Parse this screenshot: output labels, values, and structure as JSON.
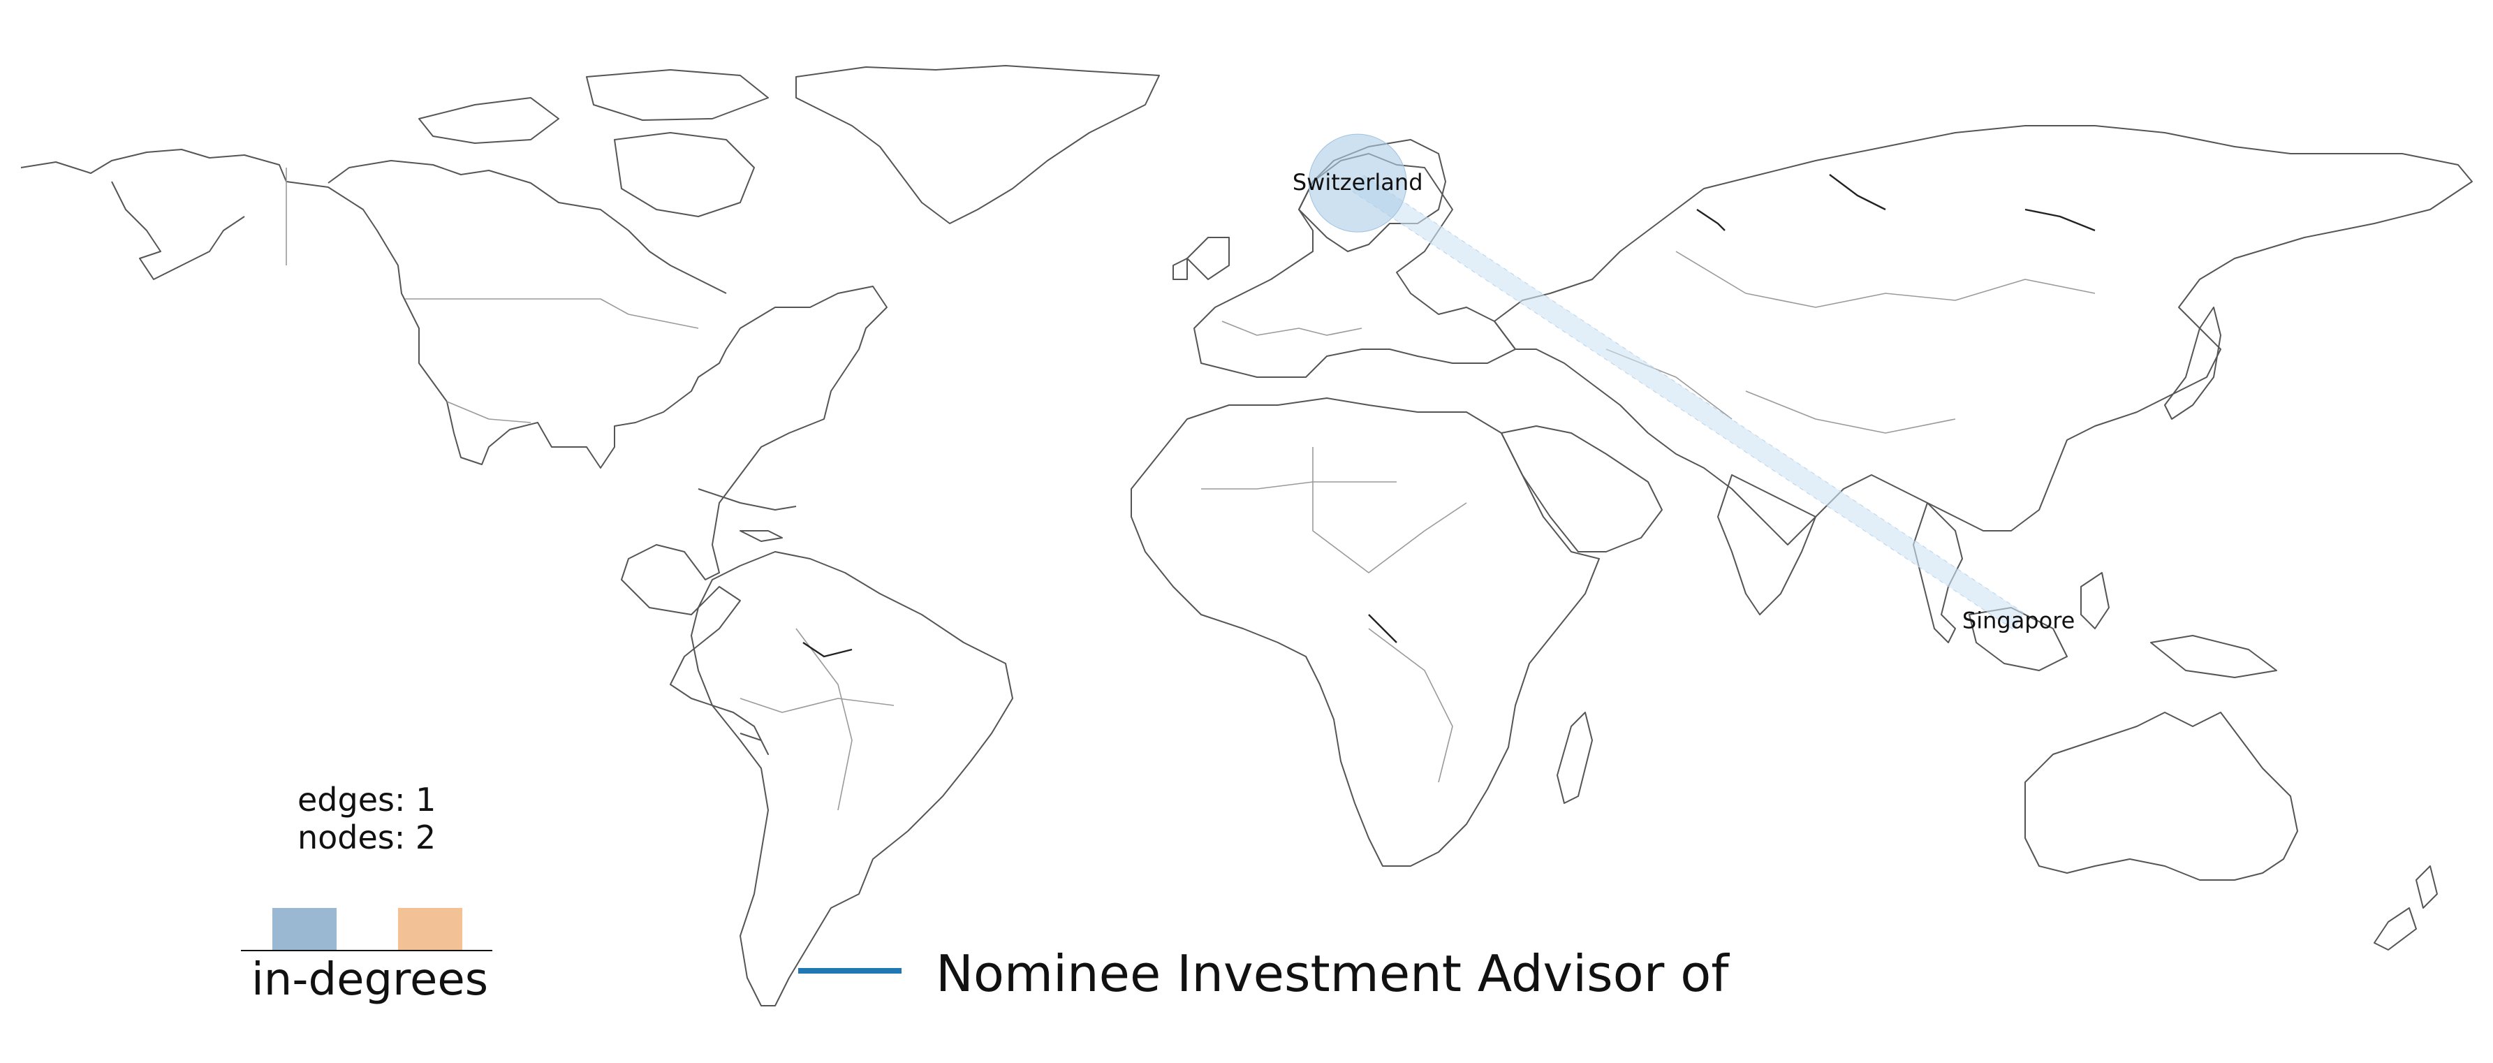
{
  "network": {
    "nodes": [
      {
        "name": "Switzerland",
        "lon": 8.2,
        "lat": 46.8,
        "in_degree": 1
      },
      {
        "name": "Singapore",
        "lon": 103.8,
        "lat": 1.35,
        "in_degree": 0
      }
    ],
    "edges": [
      {
        "source": "Singapore",
        "target": "Switzerland",
        "type": "Nominee Investment Advisor of"
      }
    ]
  },
  "stats": {
    "edges_text": "edges: 1",
    "nodes_text": "nodes: 2"
  },
  "legend": {
    "in_degrees_title": "in-degrees",
    "bar_colors": [
      "#9ab8d1",
      "#f2c196"
    ],
    "edge_type_label": "Nominee Investment Advisor of",
    "edge_color": "#1f77b4"
  },
  "colors": {
    "node_fill": "#aecde8",
    "edge_fill": "#cfe2f3"
  }
}
